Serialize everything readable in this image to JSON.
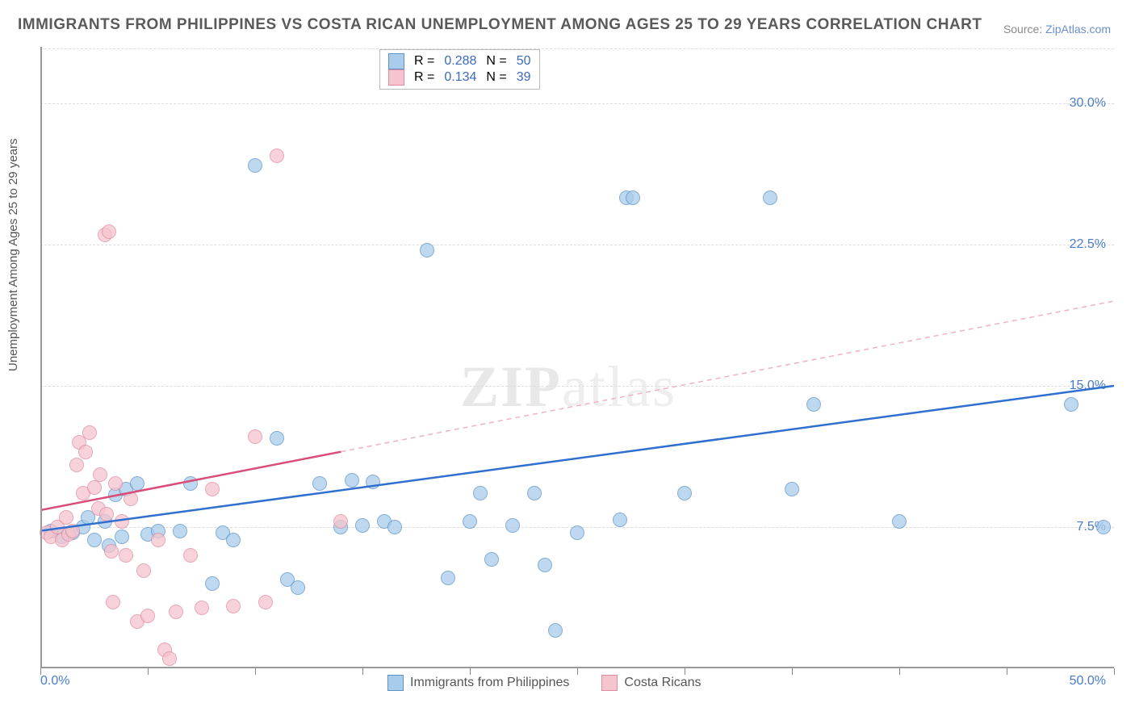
{
  "title": "IMMIGRANTS FROM PHILIPPINES VS COSTA RICAN UNEMPLOYMENT AMONG AGES 25 TO 29 YEARS CORRELATION CHART",
  "source_prefix": "Source: ",
  "source_link": "ZipAtlas.com",
  "y_axis_label": "Unemployment Among Ages 25 to 29 years",
  "watermark_bold": "ZIP",
  "watermark_thin": "atlas",
  "chart": {
    "type": "scatter",
    "xlim": [
      0,
      50
    ],
    "ylim": [
      0,
      33
    ],
    "x_tick_left": "0.0%",
    "x_tick_right": "50.0%",
    "y_ticks": [
      {
        "v": 7.5,
        "label": "7.5%"
      },
      {
        "v": 15.0,
        "label": "15.0%"
      },
      {
        "v": 22.5,
        "label": "22.5%"
      },
      {
        "v": 30.0,
        "label": "30.0%"
      }
    ],
    "x_tick_positions": [
      0,
      5,
      10,
      15,
      20,
      25,
      30,
      35,
      40,
      45,
      50
    ],
    "background_color": "#ffffff",
    "grid_color": "#dddddd",
    "series": [
      {
        "name": "Immigrants from Philippines",
        "marker_color": "#a9cceb",
        "marker_border": "#5b93c9",
        "marker_radius": 9,
        "marker_opacity": 0.75,
        "r_label": "R =",
        "r_value": "0.288",
        "n_label": "N =",
        "n_value": "50",
        "trend": {
          "x1": 0,
          "y1": 7.3,
          "x2": 50,
          "y2": 15.0,
          "color": "#2e6fd0",
          "width": 2.5,
          "dash": "none"
        },
        "points": [
          [
            0.5,
            7.3
          ],
          [
            1.0,
            7.0
          ],
          [
            1.5,
            7.2
          ],
          [
            2.0,
            7.5
          ],
          [
            2.2,
            8.0
          ],
          [
            2.5,
            6.8
          ],
          [
            3.0,
            7.8
          ],
          [
            3.2,
            6.5
          ],
          [
            3.5,
            9.2
          ],
          [
            3.8,
            7.0
          ],
          [
            4.0,
            9.5
          ],
          [
            4.5,
            9.8
          ],
          [
            5.0,
            7.1
          ],
          [
            5.5,
            7.3
          ],
          [
            6.5,
            7.3
          ],
          [
            7.0,
            9.8
          ],
          [
            8.0,
            4.5
          ],
          [
            8.5,
            7.2
          ],
          [
            9.0,
            6.8
          ],
          [
            10.0,
            26.7
          ],
          [
            11.0,
            12.2
          ],
          [
            11.5,
            4.7
          ],
          [
            12.0,
            4.3
          ],
          [
            13.0,
            9.8
          ],
          [
            14.0,
            7.5
          ],
          [
            14.5,
            10.0
          ],
          [
            15.0,
            7.6
          ],
          [
            15.5,
            9.9
          ],
          [
            16.0,
            7.8
          ],
          [
            16.5,
            7.5
          ],
          [
            18.0,
            22.2
          ],
          [
            19.0,
            4.8
          ],
          [
            20.0,
            7.8
          ],
          [
            20.5,
            9.3
          ],
          [
            21.0,
            5.8
          ],
          [
            22.0,
            7.6
          ],
          [
            23.0,
            9.3
          ],
          [
            23.5,
            5.5
          ],
          [
            24.0,
            2.0
          ],
          [
            25.0,
            7.2
          ],
          [
            27.0,
            7.9
          ],
          [
            27.3,
            25.0
          ],
          [
            27.6,
            25.0
          ],
          [
            30.0,
            9.3
          ],
          [
            34.0,
            25.0
          ],
          [
            35.0,
            9.5
          ],
          [
            36.0,
            14.0
          ],
          [
            40.0,
            7.8
          ],
          [
            48.0,
            14.0
          ],
          [
            49.5,
            7.5
          ]
        ]
      },
      {
        "name": "Costa Ricans",
        "marker_color": "#f5c4ce",
        "marker_border": "#e08ba0",
        "marker_radius": 9,
        "marker_opacity": 0.75,
        "r_label": "R =",
        "r_value": "0.134",
        "n_label": "N =",
        "n_value": "39",
        "trend_solid": {
          "x1": 0,
          "y1": 8.4,
          "x2": 14,
          "y2": 11.5,
          "color": "#d84e78",
          "width": 2.5
        },
        "trend_dashed": {
          "x1": 14,
          "y1": 11.5,
          "x2": 50,
          "y2": 19.5,
          "color": "#eeb3c1",
          "width": 1.5,
          "dash": "6,5"
        },
        "points": [
          [
            0.3,
            7.2
          ],
          [
            0.5,
            7.0
          ],
          [
            0.8,
            7.5
          ],
          [
            1.0,
            6.8
          ],
          [
            1.2,
            8.0
          ],
          [
            1.3,
            7.1
          ],
          [
            1.5,
            7.3
          ],
          [
            1.7,
            10.8
          ],
          [
            1.8,
            12.0
          ],
          [
            2.0,
            9.3
          ],
          [
            2.1,
            11.5
          ],
          [
            2.3,
            12.5
          ],
          [
            2.5,
            9.6
          ],
          [
            2.7,
            8.5
          ],
          [
            2.8,
            10.3
          ],
          [
            3.0,
            23.0
          ],
          [
            3.1,
            8.2
          ],
          [
            3.2,
            23.2
          ],
          [
            3.3,
            6.2
          ],
          [
            3.4,
            3.5
          ],
          [
            3.5,
            9.8
          ],
          [
            3.8,
            7.8
          ],
          [
            4.0,
            6.0
          ],
          [
            4.2,
            9.0
          ],
          [
            4.5,
            2.5
          ],
          [
            4.8,
            5.2
          ],
          [
            5.0,
            2.8
          ],
          [
            5.5,
            6.8
          ],
          [
            5.8,
            1.0
          ],
          [
            6.0,
            0.5
          ],
          [
            6.3,
            3.0
          ],
          [
            7.0,
            6.0
          ],
          [
            7.5,
            3.2
          ],
          [
            8.0,
            9.5
          ],
          [
            9.0,
            3.3
          ],
          [
            10.0,
            12.3
          ],
          [
            10.5,
            3.5
          ],
          [
            11.0,
            27.2
          ],
          [
            14.0,
            7.8
          ]
        ]
      }
    ]
  },
  "legend_bottom": [
    {
      "label": "Immigrants from Philippines",
      "fill": "#a9cceb",
      "border": "#5b93c9"
    },
    {
      "label": "Costa Ricans",
      "fill": "#f5c4ce",
      "border": "#e08ba0"
    }
  ]
}
